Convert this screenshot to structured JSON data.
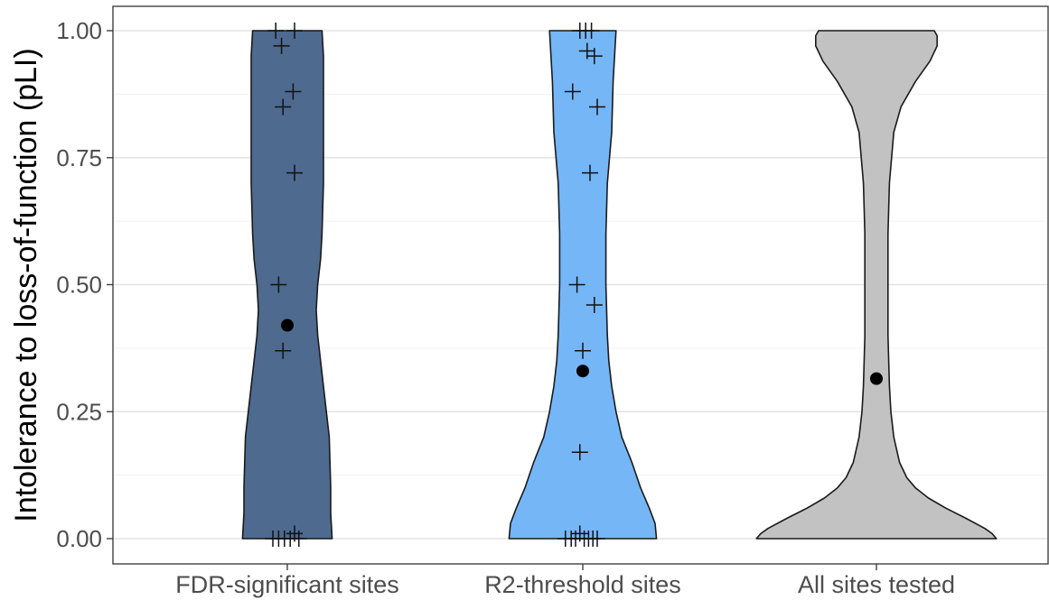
{
  "chart_data": {
    "type": "violin",
    "title": "",
    "xlabel": "",
    "ylabel": "Intolerance to loss-of-function (pLI)",
    "ylim": [
      0,
      1
    ],
    "yticks": [
      0,
      0.25,
      0.5,
      0.75,
      1.0
    ],
    "ytick_labels": [
      "0.00",
      "0.25",
      "0.50",
      "0.75",
      "1.00"
    ],
    "grid": true,
    "legend": "none",
    "categories": [
      "FDR-significant sites",
      "R2-threshold sites",
      "All sites tested"
    ],
    "series": [
      {
        "category": "FDR-significant sites",
        "color": "#4e6a8f",
        "mean": 0.42,
        "points": [
          {
            "x": -0.08,
            "y": 1.0
          },
          {
            "x": 0.05,
            "y": 1.0
          },
          {
            "x": -0.04,
            "y": 0.97
          },
          {
            "x": 0.04,
            "y": 0.88
          },
          {
            "x": -0.03,
            "y": 0.85
          },
          {
            "x": 0.05,
            "y": 0.72
          },
          {
            "x": -0.06,
            "y": 0.5
          },
          {
            "x": -0.03,
            "y": 0.37
          },
          {
            "x": -0.1,
            "y": 0.0
          },
          {
            "x": -0.06,
            "y": 0.0
          },
          {
            "x": -0.02,
            "y": 0.0
          },
          {
            "x": 0.02,
            "y": 0.0
          },
          {
            "x": 0.05,
            "y": 0.01
          },
          {
            "x": 0.08,
            "y": 0.0
          }
        ],
        "density": [
          [
            0.0,
            0.31
          ],
          [
            0.05,
            0.3
          ],
          [
            0.1,
            0.3
          ],
          [
            0.2,
            0.29
          ],
          [
            0.3,
            0.25
          ],
          [
            0.35,
            0.23
          ],
          [
            0.4,
            0.21
          ],
          [
            0.45,
            0.2
          ],
          [
            0.5,
            0.21
          ],
          [
            0.55,
            0.23
          ],
          [
            0.6,
            0.24
          ],
          [
            0.7,
            0.25
          ],
          [
            0.8,
            0.25
          ],
          [
            0.9,
            0.25
          ],
          [
            0.95,
            0.25
          ],
          [
            1.0,
            0.24
          ]
        ]
      },
      {
        "category": "R2-threshold sites",
        "color": "#75b6f7",
        "mean": 0.33,
        "points": [
          {
            "x": -0.02,
            "y": 1.0
          },
          {
            "x": 0.02,
            "y": 1.0
          },
          {
            "x": 0.06,
            "y": 1.0
          },
          {
            "x": 0.03,
            "y": 0.96
          },
          {
            "x": 0.08,
            "y": 0.95
          },
          {
            "x": -0.07,
            "y": 0.88
          },
          {
            "x": 0.1,
            "y": 0.85
          },
          {
            "x": 0.05,
            "y": 0.72
          },
          {
            "x": -0.04,
            "y": 0.5
          },
          {
            "x": 0.08,
            "y": 0.46
          },
          {
            "x": 0.0,
            "y": 0.37
          },
          {
            "x": -0.02,
            "y": 0.17
          },
          {
            "x": -0.12,
            "y": 0.0
          },
          {
            "x": -0.08,
            "y": 0.0
          },
          {
            "x": -0.05,
            "y": 0.0
          },
          {
            "x": -0.02,
            "y": 0.01
          },
          {
            "x": 0.01,
            "y": 0.0
          },
          {
            "x": 0.04,
            "y": 0.0
          },
          {
            "x": 0.07,
            "y": 0.0
          },
          {
            "x": 0.1,
            "y": 0.0
          }
        ],
        "density": [
          [
            0.0,
            0.51
          ],
          [
            0.03,
            0.5
          ],
          [
            0.06,
            0.46
          ],
          [
            0.1,
            0.4
          ],
          [
            0.15,
            0.34
          ],
          [
            0.2,
            0.27
          ],
          [
            0.25,
            0.23
          ],
          [
            0.3,
            0.2
          ],
          [
            0.35,
            0.18
          ],
          [
            0.4,
            0.17
          ],
          [
            0.5,
            0.16
          ],
          [
            0.6,
            0.16
          ],
          [
            0.7,
            0.17
          ],
          [
            0.8,
            0.2
          ],
          [
            0.9,
            0.21
          ],
          [
            0.95,
            0.22
          ],
          [
            1.0,
            0.23
          ]
        ]
      },
      {
        "category": "All sites tested",
        "color": "#c2c2c2",
        "mean": 0.315,
        "points": [],
        "density": [
          [
            0.0,
            0.83
          ],
          [
            0.01,
            0.8
          ],
          [
            0.02,
            0.75
          ],
          [
            0.04,
            0.62
          ],
          [
            0.06,
            0.48
          ],
          [
            0.08,
            0.36
          ],
          [
            0.1,
            0.27
          ],
          [
            0.12,
            0.21
          ],
          [
            0.15,
            0.16
          ],
          [
            0.2,
            0.12
          ],
          [
            0.25,
            0.1
          ],
          [
            0.3,
            0.09
          ],
          [
            0.4,
            0.08
          ],
          [
            0.5,
            0.08
          ],
          [
            0.6,
            0.08
          ],
          [
            0.7,
            0.09
          ],
          [
            0.8,
            0.12
          ],
          [
            0.85,
            0.17
          ],
          [
            0.9,
            0.27
          ],
          [
            0.94,
            0.37
          ],
          [
            0.97,
            0.42
          ],
          [
            0.99,
            0.42
          ],
          [
            1.0,
            0.4
          ]
        ]
      }
    ]
  }
}
